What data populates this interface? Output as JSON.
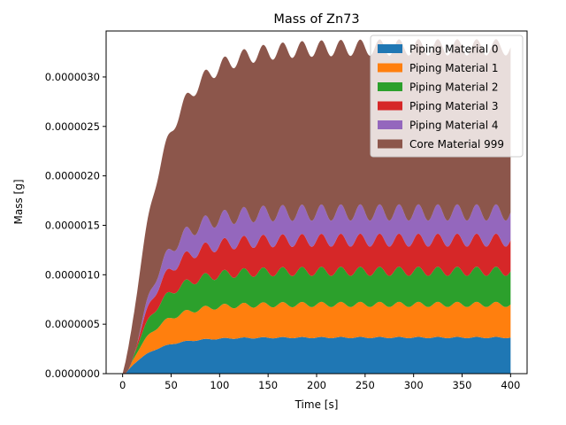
{
  "chart_data": {
    "type": "area",
    "stacked": true,
    "title": "Mass of Zn73",
    "xlabel": "Time [s]",
    "ylabel": "Mass [g]",
    "xlim": [
      -17,
      417
    ],
    "ylim": [
      0,
      3.465e-06
    ],
    "xticks": [
      0,
      50,
      100,
      150,
      200,
      250,
      300,
      350,
      400
    ],
    "yticks": [
      0,
      5e-07,
      1e-06,
      1.5e-06,
      2e-06,
      2.5e-06,
      3e-06
    ],
    "ytick_labels": [
      "0.0000000",
      "0.0000005",
      "0.0000010",
      "0.0000015",
      "0.0000020",
      "0.0000025",
      "0.0000030"
    ],
    "legend_position": "top-right",
    "x_start": 0,
    "x_end": 400,
    "series": [
      {
        "name": "Piping Material 0",
        "color": "#1f77b4",
        "final_value": 3.65e-07,
        "tau": 28,
        "delay": 3,
        "ripple": 0.018
      },
      {
        "name": "Piping Material 1",
        "color": "#ff7f0e",
        "final_value": 3.35e-07,
        "tau": 28,
        "delay": 6,
        "ripple": 0.06
      },
      {
        "name": "Piping Material 2",
        "color": "#2ca02c",
        "final_value": 3.35e-07,
        "tau": 28,
        "delay": 9,
        "ripple": 0.06
      },
      {
        "name": "Piping Material 3",
        "color": "#d62728",
        "final_value": 3.15e-07,
        "tau": 28,
        "delay": 12,
        "ripple": 0.06
      },
      {
        "name": "Piping Material 4",
        "color": "#9467bd",
        "final_value": 2.8e-07,
        "tau": 28,
        "delay": 15,
        "ripple": 0.06
      },
      {
        "name": "Core Material 999",
        "color": "#8c564b",
        "final_value": 1.67e-06,
        "tau": 40,
        "delay": 0,
        "ripple": 0.0
      }
    ]
  }
}
